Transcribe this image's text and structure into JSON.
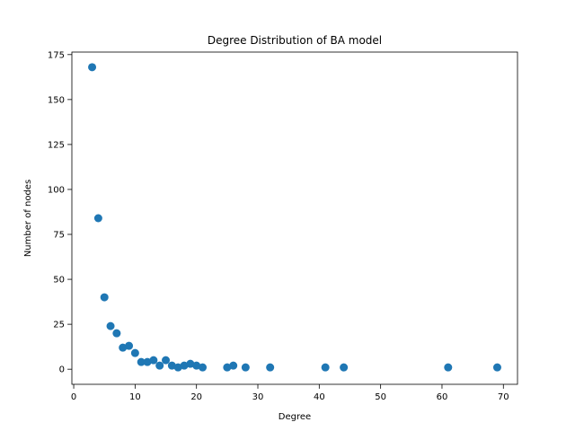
{
  "chart_data": {
    "type": "scatter",
    "title": "Degree Distribution of BA model",
    "xlabel": "Degree",
    "ylabel": "Number of nodes",
    "xlim": [
      -0.3,
      72.3
    ],
    "ylim": [
      -8.4,
      176.4
    ],
    "xticks": [
      0,
      10,
      20,
      30,
      40,
      50,
      60,
      70
    ],
    "yticks": [
      0,
      25,
      50,
      75,
      100,
      125,
      150,
      175
    ],
    "grid": false,
    "marker_color": "#1f77b4",
    "points": [
      {
        "x": 3,
        "y": 168
      },
      {
        "x": 4,
        "y": 84
      },
      {
        "x": 5,
        "y": 40
      },
      {
        "x": 6,
        "y": 24
      },
      {
        "x": 7,
        "y": 20
      },
      {
        "x": 8,
        "y": 12
      },
      {
        "x": 9,
        "y": 13
      },
      {
        "x": 10,
        "y": 9
      },
      {
        "x": 11,
        "y": 4
      },
      {
        "x": 12,
        "y": 4
      },
      {
        "x": 13,
        "y": 5
      },
      {
        "x": 14,
        "y": 2
      },
      {
        "x": 15,
        "y": 5
      },
      {
        "x": 16,
        "y": 2
      },
      {
        "x": 17,
        "y": 1
      },
      {
        "x": 18,
        "y": 2
      },
      {
        "x": 19,
        "y": 3
      },
      {
        "x": 20,
        "y": 2
      },
      {
        "x": 21,
        "y": 1
      },
      {
        "x": 25,
        "y": 1
      },
      {
        "x": 26,
        "y": 2
      },
      {
        "x": 28,
        "y": 1
      },
      {
        "x": 32,
        "y": 1
      },
      {
        "x": 41,
        "y": 1
      },
      {
        "x": 44,
        "y": 1
      },
      {
        "x": 61,
        "y": 1
      },
      {
        "x": 69,
        "y": 1
      }
    ]
  }
}
